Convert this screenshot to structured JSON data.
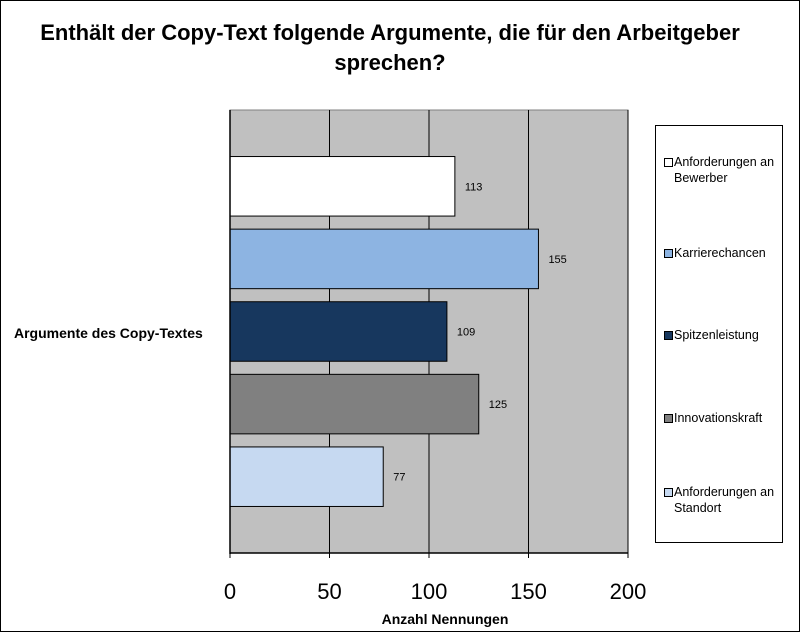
{
  "chart_data": {
    "type": "bar",
    "orientation": "horizontal",
    "title": "Enthält der Copy-Text folgende Argumente, die für den Arbeitgeber sprechen?",
    "xlabel": "Anzahl Nennungen",
    "ylabel": "Argumente des Copy-Textes",
    "xlim": [
      0,
      200
    ],
    "x_ticks": [
      "0",
      "50",
      "100",
      "150",
      "200"
    ],
    "grid": true,
    "legend_position": "right",
    "series": [
      {
        "name": "Anforderungen an Bewerber",
        "value": 113,
        "label": "113",
        "color": "#ffffff"
      },
      {
        "name": "Karrierechancen",
        "value": 155,
        "label": "155",
        "color": "#8db4e2"
      },
      {
        "name": "Spitzenleistung",
        "value": 109,
        "label": "109",
        "color": "#17375e"
      },
      {
        "name": "Innovationskraft",
        "value": 125,
        "label": "125",
        "color": "#808080"
      },
      {
        "name": "Anforderungen an Standort",
        "value": 77,
        "label": "77",
        "color": "#c6d9f1"
      }
    ],
    "plot_background": "#c0c0c0"
  }
}
